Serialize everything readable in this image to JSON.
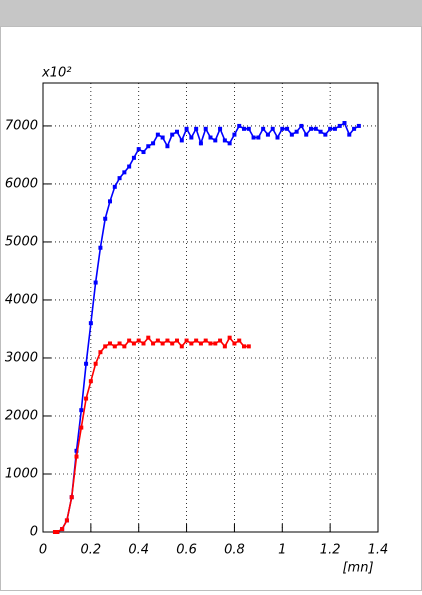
{
  "chart_data": {
    "type": "line",
    "axis_multiplier": "x10²",
    "x_label": "[mn]",
    "xlim": [
      0,
      1.4
    ],
    "xticks": [
      0,
      0.2,
      0.4,
      0.6,
      0.8,
      1,
      1.2,
      1.4
    ],
    "ylim": [
      0,
      7740
    ],
    "yticks": [
      0,
      1000,
      2000,
      3000,
      4000,
      5000,
      6000,
      7000
    ],
    "grid": true,
    "series": [
      {
        "color": "#0000ff",
        "x": [
          0.05,
          0.06,
          0.08,
          0.1,
          0.12,
          0.14,
          0.16,
          0.18,
          0.2,
          0.22,
          0.24,
          0.26,
          0.28,
          0.3,
          0.32,
          0.34,
          0.36,
          0.38,
          0.4,
          0.42,
          0.44,
          0.46,
          0.48,
          0.5,
          0.52,
          0.54,
          0.56,
          0.58,
          0.6,
          0.62,
          0.64,
          0.66,
          0.68,
          0.7,
          0.72,
          0.74,
          0.76,
          0.78,
          0.8,
          0.82,
          0.84,
          0.86,
          0.88,
          0.9,
          0.92,
          0.94,
          0.96,
          0.98,
          1.0,
          1.02,
          1.04,
          1.06,
          1.08,
          1.1,
          1.12,
          1.14,
          1.16,
          1.18,
          1.2,
          1.22,
          1.24,
          1.26,
          1.28,
          1.3,
          1.32
        ],
        "values": [
          0,
          0,
          50,
          200,
          600,
          1400,
          2100,
          2900,
          3600,
          4300,
          4900,
          5400,
          5700,
          5950,
          6100,
          6200,
          6300,
          6450,
          6600,
          6550,
          6650,
          6700,
          6850,
          6800,
          6650,
          6850,
          6900,
          6750,
          6950,
          6800,
          6950,
          6700,
          6950,
          6800,
          6750,
          6950,
          6750,
          6700,
          6850,
          7000,
          6950,
          6950,
          6800,
          6800,
          6950,
          6850,
          6950,
          6800,
          6950,
          6950,
          6850,
          6900,
          7000,
          6850,
          6950,
          6950,
          6900,
          6850,
          6950,
          6950,
          7000,
          7050,
          6850,
          6950,
          7000
        ]
      },
      {
        "color": "#ff0000",
        "x": [
          0.05,
          0.06,
          0.08,
          0.1,
          0.12,
          0.14,
          0.16,
          0.18,
          0.2,
          0.22,
          0.24,
          0.26,
          0.28,
          0.3,
          0.32,
          0.34,
          0.36,
          0.38,
          0.4,
          0.42,
          0.44,
          0.46,
          0.48,
          0.5,
          0.52,
          0.54,
          0.56,
          0.58,
          0.6,
          0.62,
          0.64,
          0.66,
          0.68,
          0.7,
          0.72,
          0.74,
          0.76,
          0.78,
          0.8,
          0.82,
          0.84,
          0.86
        ],
        "values": [
          0,
          0,
          50,
          200,
          600,
          1300,
          1800,
          2300,
          2600,
          2900,
          3100,
          3200,
          3250,
          3200,
          3250,
          3200,
          3300,
          3250,
          3300,
          3250,
          3350,
          3250,
          3300,
          3250,
          3300,
          3250,
          3300,
          3200,
          3300,
          3250,
          3300,
          3250,
          3300,
          3250,
          3250,
          3300,
          3200,
          3350,
          3250,
          3300,
          3200,
          3200
        ]
      }
    ]
  }
}
